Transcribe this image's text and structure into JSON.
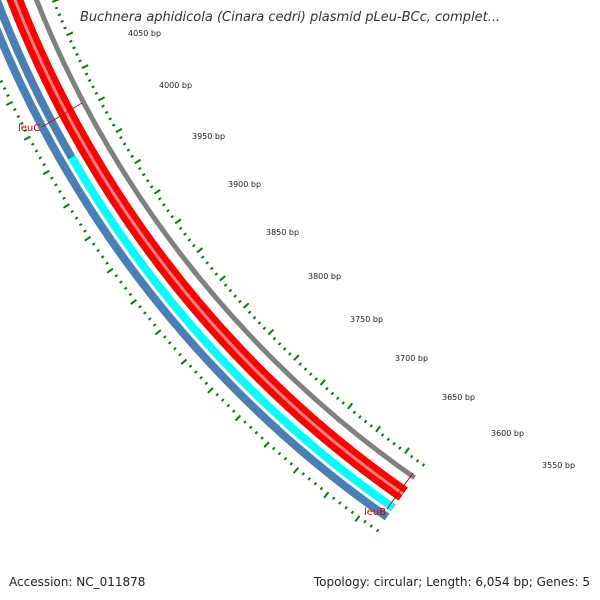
{
  "title": "Buchnera aphidicola (Cinara cedri) plasmid pLeu-BCc, complet...",
  "footer": {
    "accession": "Accession: NC_011878",
    "summary": "Topology: circular; Length: 6,054 bp; Genes: 5"
  },
  "ticks": [
    "4050 bp",
    "4000 bp",
    "3950 bp",
    "3900 bp",
    "3850 bp",
    "3800 bp",
    "3750 bp",
    "3700 bp",
    "3650 bp",
    "3600 bp",
    "3550 bp"
  ],
  "genes": {
    "leuC": "leuC",
    "leuB": "leuB"
  },
  "colors": {
    "outer_track": "#808080",
    "gene_red": "#ff0000",
    "gene_cyan": "#00ffff",
    "inner_track": "#4a7fb5",
    "skew_marks": "#0a7a0a",
    "label_line": "#cc0000"
  }
}
